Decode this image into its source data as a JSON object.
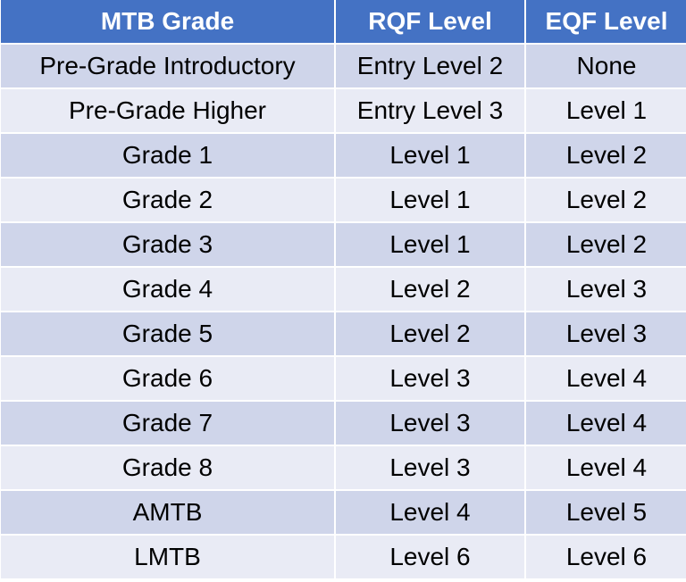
{
  "table": {
    "headers": [
      "MTB Grade",
      "RQF Level",
      "EQF Level"
    ],
    "rows": [
      [
        "Pre-Grade Introductory",
        "Entry Level 2",
        "None"
      ],
      [
        "Pre-Grade Higher",
        "Entry Level 3",
        "Level 1"
      ],
      [
        "Grade 1",
        "Level 1",
        "Level 2"
      ],
      [
        "Grade 2",
        "Level 1",
        "Level 2"
      ],
      [
        "Grade 3",
        "Level 1",
        "Level 2"
      ],
      [
        "Grade 4",
        "Level 2",
        "Level 3"
      ],
      [
        "Grade 5",
        "Level 2",
        "Level 3"
      ],
      [
        "Grade 6",
        "Level 3",
        "Level 4"
      ],
      [
        "Grade 7",
        "Level 3",
        "Level 4"
      ],
      [
        "Grade 8",
        "Level 3",
        "Level 4"
      ],
      [
        "AMTB",
        "Level 4",
        "Level 5"
      ],
      [
        "LMTB",
        "Level 6",
        "Level 6"
      ]
    ],
    "colors": {
      "header_bg": "#4472c4",
      "header_text": "#ffffff",
      "row_odd_bg": "#cfd5ea",
      "row_even_bg": "#e9ebf5"
    }
  }
}
